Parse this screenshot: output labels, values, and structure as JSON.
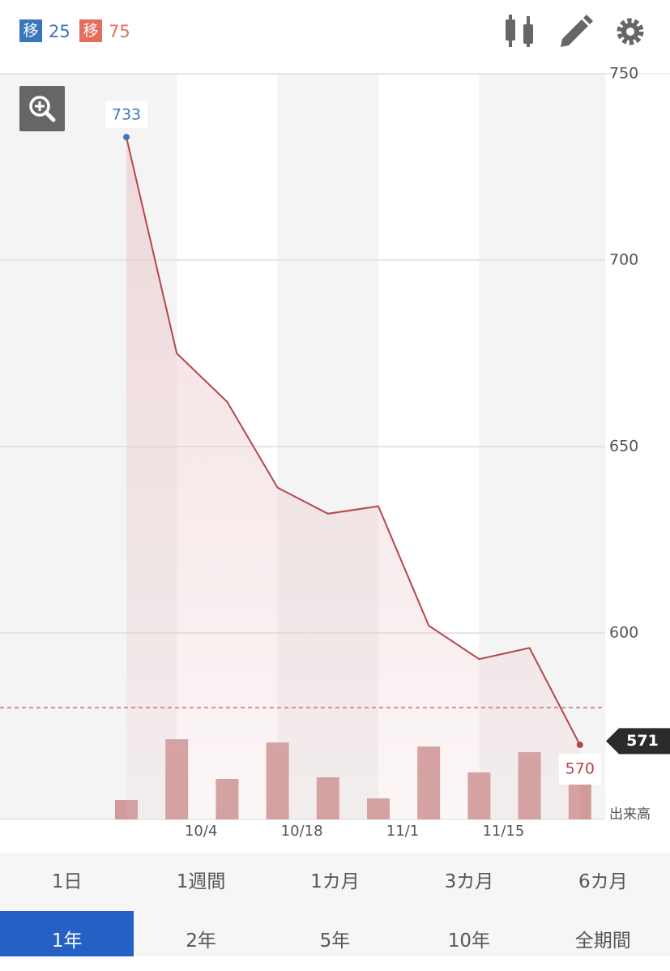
{
  "header": {
    "moving_averages": [
      {
        "badge": "移",
        "period": 25,
        "color": "#3a76c0"
      },
      {
        "badge": "移",
        "period": 75,
        "color": "#e46e5e"
      }
    ]
  },
  "chart_data": {
    "type": "line",
    "categories": [
      null,
      "10/4",
      null,
      "10/18",
      null,
      "11/1",
      null,
      "11/15",
      null,
      null
    ],
    "values": [
      733,
      675,
      662,
      639,
      632,
      634,
      602,
      593,
      596,
      570
    ],
    "color": "#b5474b",
    "volume": [
      24,
      99,
      50,
      95,
      52,
      26,
      90,
      58,
      83,
      44
    ],
    "volume_color": "#d19b9b",
    "volume_label": "出来高",
    "high_color": "#3a76c0",
    "reference_line": 580,
    "current_price": 571,
    "ylim": [
      550,
      750
    ],
    "yticks": [
      600,
      650,
      700,
      750
    ],
    "grid": true
  },
  "periods": {
    "rows": [
      [
        "1日",
        "1週間",
        "1カ月",
        "3カ月",
        "6カ月"
      ],
      [
        "1年",
        "2年",
        "5年",
        "10年",
        "全期間"
      ]
    ],
    "selected": "1年"
  }
}
